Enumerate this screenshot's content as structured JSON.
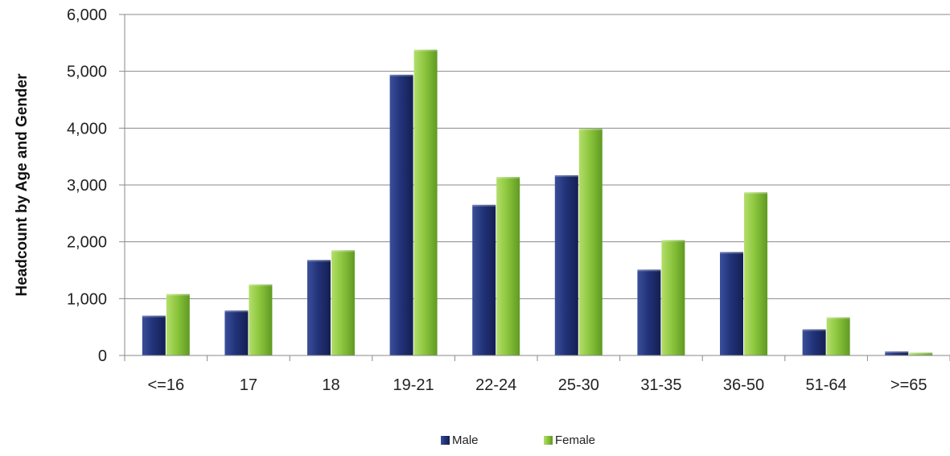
{
  "chart_data": {
    "type": "bar",
    "title": "",
    "xlabel": "",
    "ylabel": "Headcount by Age and Gender",
    "categories": [
      "<=16",
      "17",
      "18",
      "19-21",
      "22-24",
      "25-30",
      "31-35",
      "36-50",
      "51-64",
      ">=65"
    ],
    "series": [
      {
        "name": "Male",
        "values": [
          700,
          790,
          1680,
          4940,
          2650,
          3170,
          1510,
          1820,
          460,
          70
        ],
        "color": "#1f2f6b"
      },
      {
        "name": "Female",
        "values": [
          1080,
          1250,
          1850,
          5380,
          3140,
          3990,
          2030,
          2870,
          670,
          50
        ],
        "color": "#8dc63f"
      }
    ],
    "ylim": [
      0,
      6000
    ],
    "yticks": [
      "0",
      "1,000",
      "2,000",
      "3,000",
      "4,000",
      "5,000",
      "6,000"
    ],
    "grid": true,
    "legend_position": "bottom-center"
  }
}
